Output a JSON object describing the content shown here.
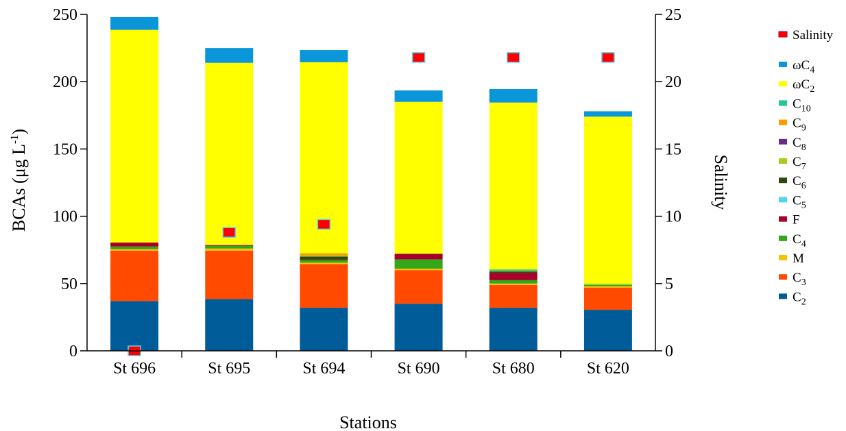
{
  "chart_data": {
    "type": "bar",
    "stacked": true,
    "xlabel": "Stations",
    "ylabel": "BCAs (μg L",
    "ylabel_sup": "-1",
    "ylabel_close": ")",
    "y2label": "Salinity",
    "ylim": [
      0,
      250
    ],
    "y2lim": [
      0,
      25
    ],
    "yticks": [
      0,
      50,
      100,
      150,
      200,
      250
    ],
    "y2ticks": [
      0,
      5,
      10,
      15,
      20,
      25
    ],
    "grid": false,
    "legend_position": "right",
    "categories": [
      "St 696",
      "St 695",
      "St 694",
      "St 690",
      "St 680",
      "St 620"
    ],
    "series": [
      {
        "key": "C2",
        "name": "C",
        "sub": "2",
        "color": "#005c99",
        "values": [
          37,
          38.5,
          32,
          35,
          32,
          30.5
        ]
      },
      {
        "key": "C3",
        "name": "C",
        "sub": "3",
        "color": "#ff4a00",
        "values": [
          37.5,
          36,
          32.5,
          25,
          17,
          16.5
        ]
      },
      {
        "key": "M",
        "name": "M",
        "sub": "",
        "color": "#f5c400",
        "values": [
          1,
          1.5,
          1,
          1,
          1,
          1
        ]
      },
      {
        "key": "C4",
        "name": "C",
        "sub": "4",
        "color": "#33a61a",
        "values": [
          2,
          2,
          2,
          7,
          2.5,
          1
        ]
      },
      {
        "key": "F",
        "name": "F",
        "sub": "",
        "color": "#a8002a",
        "values": [
          3,
          0.5,
          0.5,
          4,
          5.5,
          0
        ]
      },
      {
        "key": "C5",
        "name": "C",
        "sub": "5",
        "color": "#55d4f0",
        "values": [
          0,
          0,
          0,
          0,
          0,
          0
        ]
      },
      {
        "key": "C6",
        "name": "C",
        "sub": "6",
        "color": "#2d4a0e",
        "values": [
          0,
          0,
          2,
          0,
          1,
          0
        ]
      },
      {
        "key": "C7",
        "name": "C",
        "sub": "7",
        "color": "#a8cc1e",
        "values": [
          0,
          0.5,
          1,
          0.5,
          0.5,
          1
        ]
      },
      {
        "key": "C8",
        "name": "C",
        "sub": "8",
        "color": "#6b2a8a",
        "values": [
          0,
          0,
          0,
          0,
          0,
          0
        ]
      },
      {
        "key": "C9",
        "name": "C",
        "sub": "9",
        "color": "#ff9900",
        "values": [
          0,
          0,
          1.5,
          0,
          0,
          0
        ]
      },
      {
        "key": "C10",
        "name": "C",
        "sub": "10",
        "color": "#1ecc8f",
        "values": [
          0,
          0,
          0,
          0,
          1,
          0
        ]
      },
      {
        "key": "wC2",
        "name": "ωC",
        "sub": "2",
        "color": "#ffff00",
        "values": [
          158,
          135,
          142,
          112.5,
          124,
          124
        ]
      },
      {
        "key": "wC4",
        "name": "ωC",
        "sub": "4",
        "color": "#0a96d8",
        "values": [
          9.5,
          11,
          9,
          8.5,
          10,
          4
        ]
      }
    ],
    "salinity": {
      "name": "Salinity",
      "color": "#ff0000",
      "edge_color": "#55d4f0",
      "values": [
        0,
        8.8,
        9.4,
        21.8,
        21.8,
        21.8
      ]
    }
  }
}
